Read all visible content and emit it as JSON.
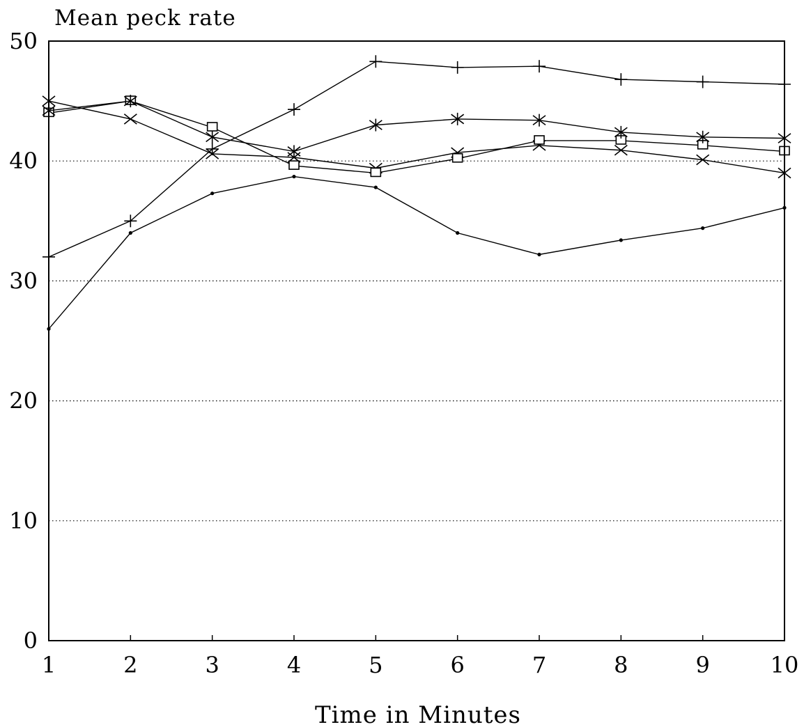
{
  "chart_data": {
    "type": "line",
    "title": "Mean peck rate",
    "xlabel": "Time in Minutes",
    "ylabel": "",
    "x": [
      1,
      2,
      3,
      4,
      5,
      6,
      7,
      8,
      9,
      10
    ],
    "xlim": [
      1,
      10
    ],
    "ylim": [
      0,
      50
    ],
    "x_ticks": [
      "1",
      "2",
      "3",
      "4",
      "5",
      "6",
      "7",
      "8",
      "9",
      "10"
    ],
    "y_ticks": [
      "0",
      "10",
      "20",
      "30",
      "40",
      "50"
    ],
    "y_tick_values": [
      0,
      10,
      20,
      30,
      40,
      50
    ],
    "grid": "horizontal dotted",
    "legend": "none",
    "series": [
      {
        "marker": "plus",
        "values": [
          32,
          35,
          41,
          44.3,
          48.3,
          47.8,
          47.9,
          46.8,
          46.6,
          46.4
        ]
      },
      {
        "marker": "dot",
        "values": [
          26,
          34,
          37.3,
          38.7,
          37.8,
          34,
          32.2,
          33.4,
          34.4,
          36.1
        ]
      },
      {
        "marker": "x",
        "values": [
          45,
          43.5,
          40.6,
          40.3,
          39.4,
          40.7,
          41.3,
          40.9,
          40.1,
          39
        ]
      },
      {
        "marker": "square",
        "values": [
          44,
          45,
          42.8,
          39.6,
          39,
          40.2,
          41.7,
          41.7,
          41.3,
          40.8
        ]
      },
      {
        "marker": "asterisk",
        "values": [
          44.2,
          45,
          42,
          40.8,
          43,
          43.5,
          43.4,
          42.4,
          42,
          41.9
        ]
      }
    ],
    "colors": {
      "line": "#000000",
      "grid": "#000000",
      "background": "#ffffff"
    }
  }
}
